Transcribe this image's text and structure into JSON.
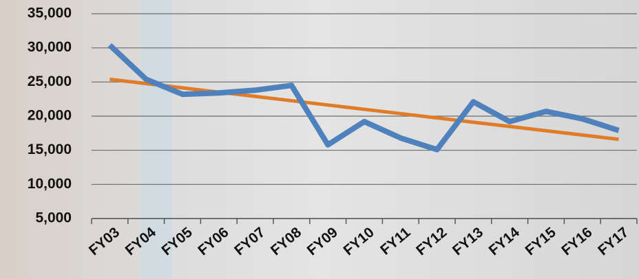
{
  "chart_data": {
    "type": "line",
    "categories": [
      "FY03",
      "FY04",
      "FY05",
      "FY06",
      "FY07",
      "FY08",
      "FY09",
      "FY10",
      "FY11",
      "FY12",
      "FY13",
      "FY14",
      "FY15",
      "FY16",
      "FY17"
    ],
    "series": [
      {
        "color": "#4f81bd",
        "values": [
          30400,
          25400,
          23200,
          23400,
          23800,
          24500,
          15800,
          19200,
          16800,
          15100,
          22100,
          19200,
          20700,
          19600,
          17900
        ]
      },
      {
        "color": "#e07b28",
        "values": [
          25400,
          24770,
          24140,
          23510,
          22890,
          22260,
          21630,
          21000,
          20370,
          19740,
          19110,
          18490,
          17860,
          17230,
          16600
        ]
      }
    ],
    "ylim": [
      5000,
      35000
    ],
    "yticks": [
      {
        "value": 5000,
        "label": "5,000"
      },
      {
        "value": 10000,
        "label": "10,000"
      },
      {
        "value": 15000,
        "label": "15,000"
      },
      {
        "value": 20000,
        "label": "20,000"
      },
      {
        "value": 25000,
        "label": "25,000"
      },
      {
        "value": 30000,
        "label": "30,000"
      },
      {
        "value": 35000,
        "label": "35,000"
      }
    ],
    "grid": true
  }
}
